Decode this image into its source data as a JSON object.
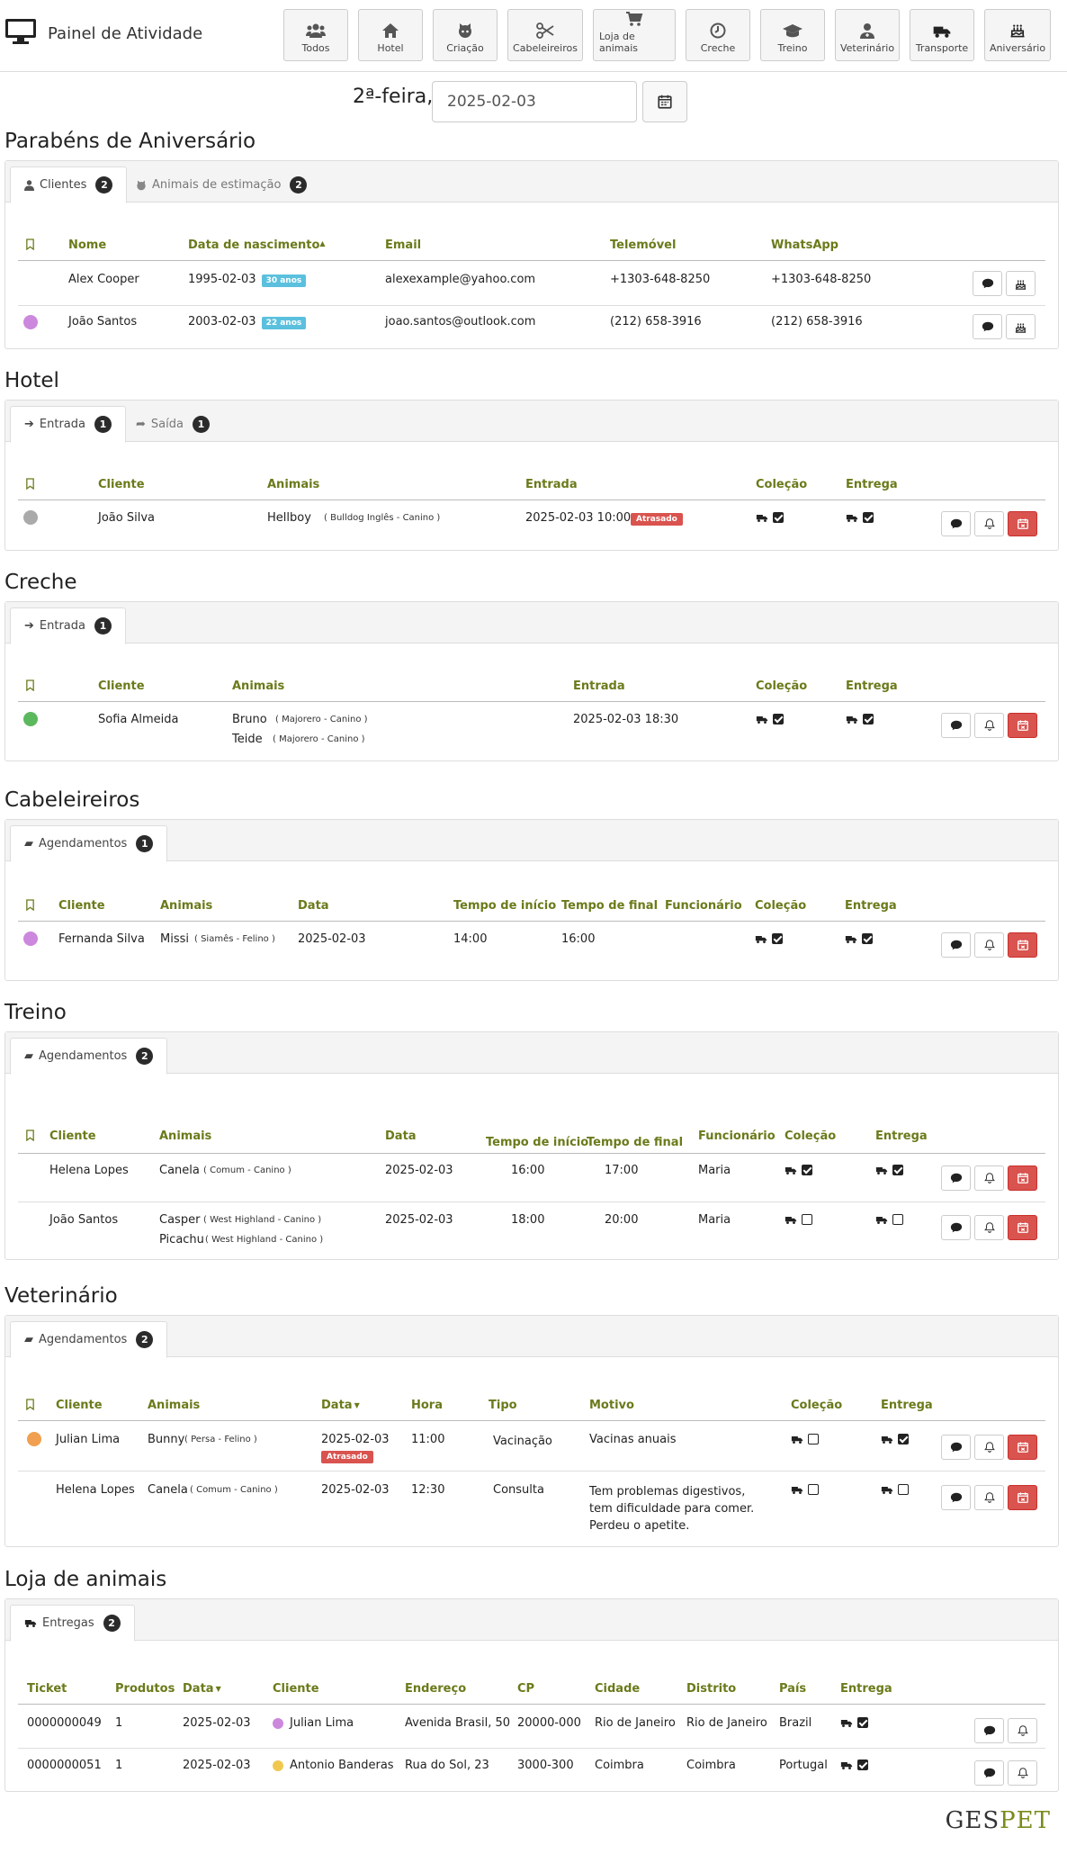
{
  "app": {
    "title": "Painel de Atividade"
  },
  "nav": [
    {
      "label": "Todos",
      "icon": "users-icon"
    },
    {
      "label": "Hotel",
      "icon": "home-icon"
    },
    {
      "label": "Criação",
      "icon": "github-cat-icon"
    },
    {
      "label": "Cabeleireiros",
      "icon": "scissors-icon"
    },
    {
      "label": "Loja de animais",
      "icon": "cart-icon"
    },
    {
      "label": "Creche",
      "icon": "clock-icon"
    },
    {
      "label": "Treino",
      "icon": "graduation-cap-icon"
    },
    {
      "label": "Veterinário",
      "icon": "user-md-icon"
    },
    {
      "label": "Transporte",
      "icon": "truck-icon"
    },
    {
      "label": "Aniversário",
      "icon": "birthday-cake-icon"
    }
  ],
  "date": {
    "weekday": "2ª-feira,",
    "value": "2025-02-03"
  },
  "birthday": {
    "title": "Parabéns de Aniversário",
    "tabs": [
      {
        "label": "Clientes",
        "count": "2"
      },
      {
        "label": "Animais de estimação",
        "count": "2"
      }
    ],
    "headers": [
      "Nome",
      "Data de nascimento",
      "Email",
      "Telemóvel",
      "WhatsApp"
    ],
    "sort_arrow": "▲",
    "rows": [
      {
        "name": "Alex Cooper",
        "dob": "1995-02-03",
        "age": "30 anos",
        "email": "alexexample@yahoo.com",
        "phone": "+1303-648-8250",
        "whatsapp": "+1303-648-8250",
        "dot": ""
      },
      {
        "name": "João Santos",
        "dob": "2003-02-03",
        "age": "22 anos",
        "email": "joao.santos@outlook.com",
        "phone": "(212) 658-3916",
        "whatsapp": "(212) 658-3916",
        "dot": "#cc88dd"
      }
    ]
  },
  "hotel": {
    "title": "Hotel",
    "tabs": [
      {
        "label": "Entrada",
        "count": "1"
      },
      {
        "label": "Saída",
        "count": "1"
      }
    ],
    "headers": [
      "Cliente",
      "Animais",
      "Entrada",
      "Coleção",
      "Entrega"
    ],
    "rows": [
      {
        "client": "João Silva",
        "animal": "Hellboy",
        "breed": "( Bulldog Inglês - Canino )",
        "entry": "2025-02-03 10:00",
        "status": "Atrasado",
        "dot": "#aaaaaa",
        "collection": true,
        "delivery": true
      }
    ]
  },
  "creche": {
    "title": "Creche",
    "tabs": [
      {
        "label": "Entrada",
        "count": "1"
      }
    ],
    "headers": [
      "Cliente",
      "Animais",
      "Entrada",
      "Coleção",
      "Entrega"
    ],
    "rows": [
      {
        "client": "Sofia Almeida",
        "animal1": "Bruno",
        "breed1": "( Majorero - Canino )",
        "animal2": "Teide",
        "breed2": "( Majorero - Canino )",
        "entry": "2025-02-03 18:30",
        "dot": "#5cb85c",
        "collection": true,
        "delivery": true
      }
    ]
  },
  "grooming": {
    "title": "Cabeleireiros",
    "tabs": [
      {
        "label": "Agendamentos",
        "count": "1"
      }
    ],
    "headers": [
      "Cliente",
      "Animais",
      "Data",
      "Tempo de início",
      "Tempo de final",
      "Funcionário",
      "Coleção",
      "Entrega"
    ],
    "rows": [
      {
        "client": "Fernanda Silva",
        "animal": "Missi",
        "breed": "( Siamês - Felino )",
        "date": "2025-02-03",
        "start": "14:00",
        "end": "16:00",
        "staff": "",
        "dot": "#cc88dd",
        "collection": true,
        "delivery": true
      }
    ]
  },
  "training": {
    "title": "Treino",
    "tabs": [
      {
        "label": "Agendamentos",
        "count": "2"
      }
    ],
    "headers": [
      "Cliente",
      "Animais",
      "Data",
      "Tempo de início",
      "Tempo de  final",
      "Funcionário",
      "Coleção",
      "Entrega"
    ],
    "rows": [
      {
        "client": "Helena Lopes",
        "animal1": "Canela",
        "breed1": "( Comum - Canino )",
        "animal2": "",
        "breed2": "",
        "date": "2025-02-03",
        "start": "16:00",
        "end": "17:00",
        "staff": "Maria",
        "collection": true,
        "delivery": true
      },
      {
        "client": "João Santos",
        "animal1": "Casper",
        "breed1": "( West Highland - Canino )",
        "animal2": "Picachu",
        "breed2": "( West Highland - Canino )",
        "date": "2025-02-03",
        "start": "18:00",
        "end": "20:00",
        "staff": "Maria",
        "collection": false,
        "delivery": false
      }
    ]
  },
  "vet": {
    "title": "Veterinário",
    "tabs": [
      {
        "label": "Agendamentos",
        "count": "2"
      }
    ],
    "headers": [
      "Cliente",
      "Animais",
      "Data",
      "Hora",
      "Tipo",
      "Motivo",
      "Coleção",
      "Entrega"
    ],
    "sort_arrow": "▼",
    "rows": [
      {
        "client": "Julian Lima",
        "animal": "Bunny",
        "breed": "( Persa - Felino )",
        "date": "2025-02-03",
        "status": "Atrasado",
        "time": "11:00",
        "type": "Vacinação",
        "reason": "Vacinas anuais",
        "dot": "#f0a050",
        "collection": false,
        "delivery": true
      },
      {
        "client": "Helena Lopes",
        "animal": "Canela",
        "breed": "( Comum - Canino )",
        "date": "2025-02-03",
        "status": "",
        "time": "12:30",
        "type": "Consulta",
        "reason": "Tem problemas digestivos, tem dificuldade para comer. Perdeu o apetite.",
        "dot": "",
        "collection": false,
        "delivery": false
      }
    ]
  },
  "shop": {
    "title": "Loja de animais",
    "tabs": [
      {
        "label": "Entregas",
        "count": "2"
      }
    ],
    "headers": [
      "Ticket",
      "Produtos",
      "Data",
      "Cliente",
      "Endereço",
      "CP",
      "Cidade",
      "Distrito",
      "País",
      "Entrega"
    ],
    "sort_arrow": "▼",
    "rows": [
      {
        "ticket": "0000000049",
        "products": "1",
        "date": "2025-02-03",
        "client": "Julian Lima",
        "dot": "#cc88dd",
        "address": "Avenida Brasil, 50",
        "cp": "20000-000",
        "city": "Rio de Janeiro",
        "district": "Rio de Janeiro",
        "country": "Brazil",
        "delivery": true
      },
      {
        "ticket": "0000000051",
        "products": "1",
        "date": "2025-02-03",
        "client": "Antonio Banderas",
        "dot": "#f0c850",
        "address": "Rua do Sol, 23",
        "cp": "3000-300",
        "city": "Coimbra",
        "district": "Coimbra",
        "country": "Portugal",
        "delivery": true
      }
    ]
  },
  "footer": {
    "brand_a": "GES",
    "brand_b": "PET"
  }
}
